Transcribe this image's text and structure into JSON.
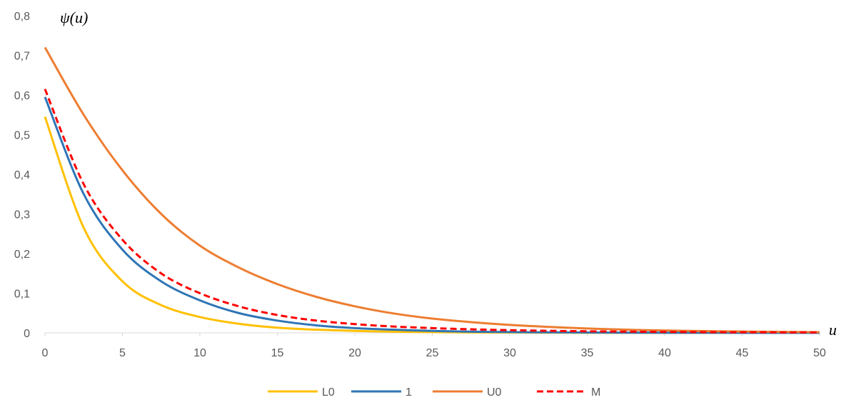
{
  "chart_data": {
    "type": "line",
    "ylabel": "ψ(u)",
    "xlabel": "u",
    "xlim": [
      0,
      50
    ],
    "ylim": [
      0,
      0.8
    ],
    "x_ticks": [
      0,
      5,
      10,
      15,
      20,
      25,
      30,
      35,
      40,
      45,
      50
    ],
    "x_tick_labels": [
      "0",
      "5",
      "10",
      "15",
      "20",
      "25",
      "30",
      "35",
      "40",
      "45",
      "50"
    ],
    "y_ticks": [
      0,
      0.1,
      0.2,
      0.3,
      0.4,
      0.5,
      0.6,
      0.7,
      0.8
    ],
    "y_tick_labels": [
      "0",
      "0,1",
      "0,2",
      "0,3",
      "0,4",
      "0,5",
      "0,6",
      "0,7",
      "0,8"
    ],
    "grid": false,
    "legend_position": "bottom-center",
    "x": [
      0,
      2.5,
      5,
      7.5,
      10,
      12.5,
      15,
      17.5,
      20,
      22.5,
      25,
      27.5,
      30,
      32.5,
      35,
      37.5,
      40,
      42.5,
      45,
      47.5,
      50
    ],
    "series": [
      {
        "name": "L0",
        "color": "#FFC000",
        "style": "solid",
        "values": [
          0.545,
          0.265,
          0.13,
          0.07,
          0.04,
          0.023,
          0.013,
          0.008,
          0.005,
          0.003,
          0.002,
          0.0012,
          0.0008,
          0.0005,
          0.0003,
          0.0002,
          0.0001,
          0.0001,
          0.0,
          0.0,
          0.0
        ]
      },
      {
        "name": "1",
        "color": "#2E75B6",
        "style": "solid",
        "values": [
          0.595,
          0.35,
          0.21,
          0.13,
          0.082,
          0.05,
          0.031,
          0.019,
          0.012,
          0.008,
          0.005,
          0.003,
          0.002,
          0.0013,
          0.0008,
          0.0005,
          0.0003,
          0.0002,
          0.0001,
          0.0001,
          0.0
        ]
      },
      {
        "name": "U0",
        "color": "#ED7D31",
        "style": "solid",
        "values": [
          0.72,
          0.55,
          0.41,
          0.3,
          0.22,
          0.165,
          0.123,
          0.091,
          0.067,
          0.049,
          0.036,
          0.027,
          0.02,
          0.015,
          0.011,
          0.008,
          0.006,
          0.0045,
          0.0033,
          0.0024,
          0.0018
        ]
      },
      {
        "name": "M",
        "color": "#FF0000",
        "style": "dashed",
        "values": [
          0.615,
          0.375,
          0.235,
          0.15,
          0.1,
          0.067,
          0.045,
          0.031,
          0.022,
          0.016,
          0.012,
          0.009,
          0.0068,
          0.0052,
          0.004,
          0.0031,
          0.0024,
          0.0019,
          0.0015,
          0.0012,
          0.001
        ]
      }
    ]
  }
}
